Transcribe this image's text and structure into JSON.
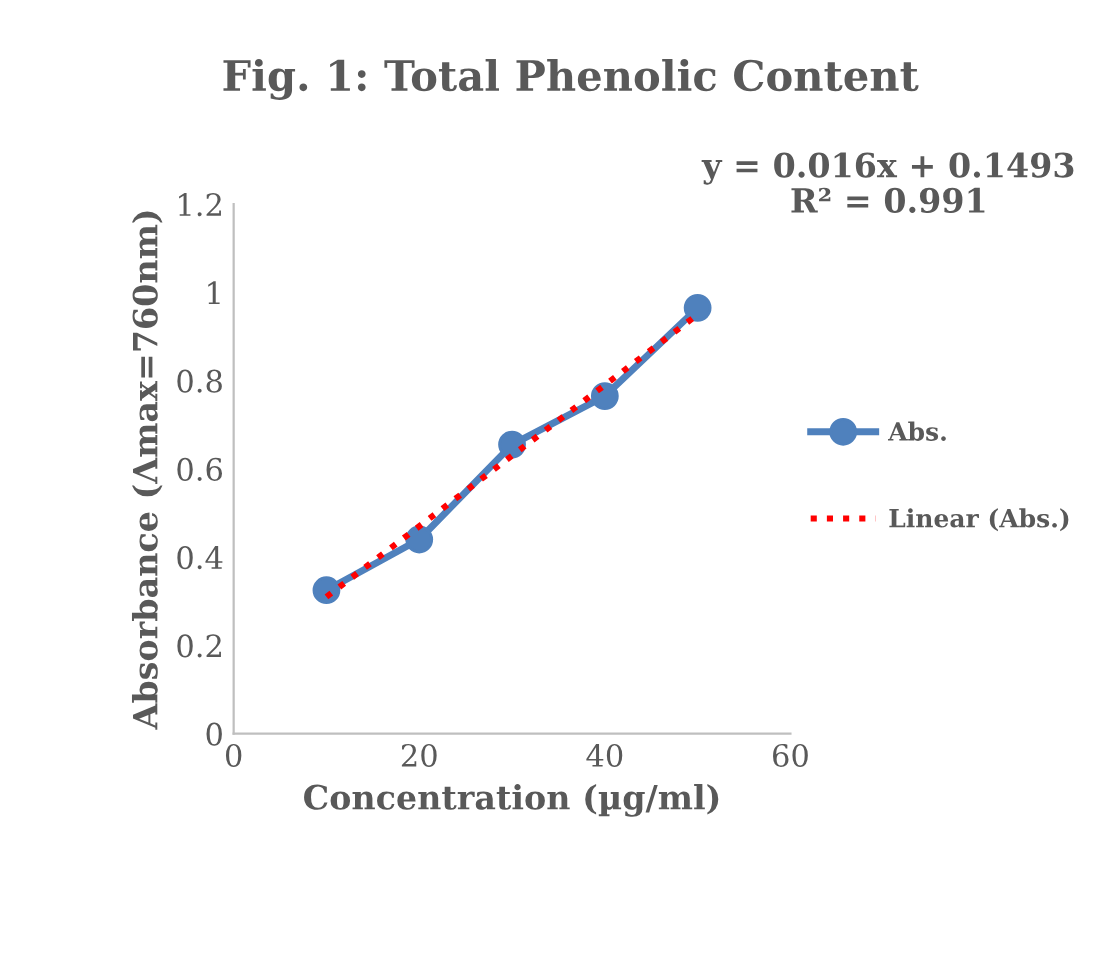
{
  "chart_data": {
    "type": "line",
    "title": "Fig. 1: Total Phenolic Content",
    "xlabel": "Concentration (µg/ml)",
    "ylabel": "Absorbance (Λmax=760nm)",
    "annotations": [
      "y = 0.016x + 0.1493\nR² = 0.991"
    ],
    "series": [
      {
        "name": "Abs.",
        "color": "#4f81bd",
        "x": [
          10,
          20,
          30,
          40,
          50
        ],
        "values": [
          0.325,
          0.44,
          0.655,
          0.765,
          0.965
        ],
        "marker": "circle",
        "line_style": "solid"
      },
      {
        "name": "Linear (Abs.)",
        "color": "#ff0000",
        "x": [
          10,
          50
        ],
        "values": [
          0.31,
          0.95
        ],
        "marker": "none",
        "line_style": "dotted"
      }
    ],
    "xlim": [
      0,
      60
    ],
    "xticks": [
      0,
      20,
      40,
      60
    ],
    "ylim": [
      0,
      1.2
    ],
    "yticks": [
      0,
      0.2,
      0.4,
      0.6,
      0.8,
      1,
      1.2
    ],
    "grid": false,
    "legend": "right"
  }
}
